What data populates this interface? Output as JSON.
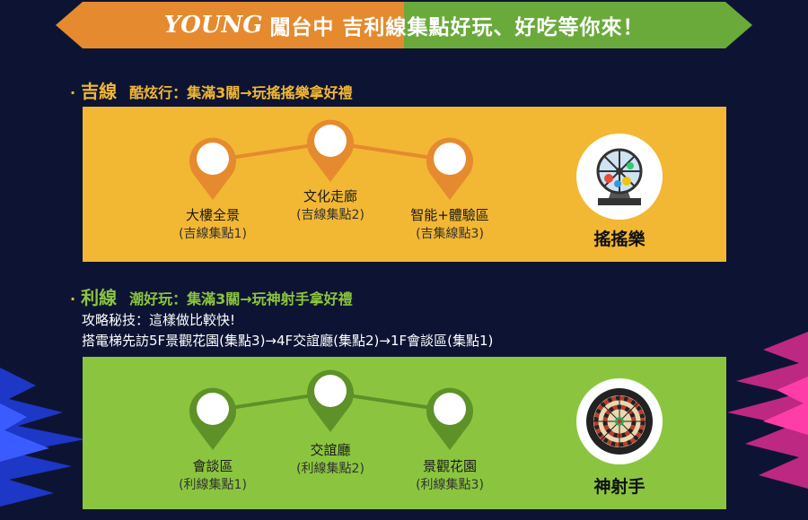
{
  "banner": {
    "brand": "YOUNG",
    "title_a": "闖台中 吉利線",
    "title_b": "集點好玩、好吃等你來！",
    "colors": {
      "left": "#e58a2e",
      "right": "#6aaa3a"
    }
  },
  "ji_line": {
    "bullet": "·",
    "name": "吉線",
    "tagline": "酷炫行：集滿3關→玩搖搖樂拿好禮",
    "stops": [
      {
        "name": "大樓全景",
        "point": "(吉線集點1)"
      },
      {
        "name": "文化走廊",
        "point": "(吉線集點2)"
      },
      {
        "name": "智能+體驗區",
        "point": "(吉集線點3)"
      }
    ],
    "prize": {
      "name": "搖搖樂",
      "icon": "lottery-machine-icon"
    },
    "color": "#f2b733",
    "pin_color": "#e58a2e"
  },
  "li_line": {
    "bullet": "·",
    "name": "利線",
    "tagline": "潮好玩：集滿3關→玩神射手拿好禮",
    "tip_title": "攻略秘技：這樣做比較快!",
    "tip_route": "搭電梯先訪5F景觀花園(集點3)→4F交誼廳(集點2)→1F會談區(集點1)",
    "stops": [
      {
        "name": "會談區",
        "point": "(利線集點1)"
      },
      {
        "name": "交誼廳",
        "point": "(利線集點2)"
      },
      {
        "name": "景觀花園",
        "point": "(利線集點3)"
      }
    ],
    "prize": {
      "name": "神射手",
      "icon": "dartboard-icon"
    },
    "color": "#8bc53f",
    "pin_color": "#5e9128"
  }
}
